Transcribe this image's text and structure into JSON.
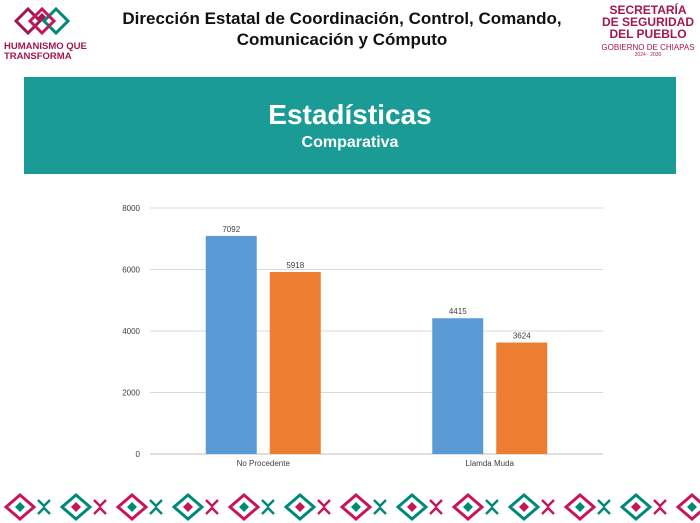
{
  "header": {
    "title_line1": "Dirección Estatal de Coordinación, Control, Comando,",
    "title_line2": "Comunicación y Cómputo"
  },
  "logo_left": {
    "icon": "humanismo-knot-icon",
    "line1": "HUMANISMO QUE",
    "line2": "TRANSFORMA"
  },
  "logo_right": {
    "line1": "SECRETARÍA",
    "line2": "DE SEGURIDAD",
    "line3": "DEL PUEBLO",
    "line4": "GOBIERNO DE CHIAPAS",
    "line5": "2024 - 2030"
  },
  "banner": {
    "title": "Estadísticas",
    "subtitle": "Comparativa"
  },
  "colors": {
    "brand_maroon": "#a3174f",
    "brand_teal": "#1a9b96",
    "bar_blue": "#5b9bd5",
    "bar_orange": "#ed7d31",
    "footer_pink": "#c2185b",
    "footer_green": "#00897b"
  },
  "chart_data": {
    "type": "bar",
    "categories": [
      "No Procedente",
      "Llamda Muda"
    ],
    "series": [
      {
        "values": [
          7092,
          4415
        ]
      },
      {
        "values": [
          5918,
          3624
        ]
      }
    ],
    "ylim": [
      0,
      8000
    ],
    "yticks": [
      0,
      2000,
      4000,
      6000,
      8000
    ],
    "grid": true,
    "data_labels": true
  },
  "footer": {
    "icon": "decorative-textile-border-icon"
  }
}
